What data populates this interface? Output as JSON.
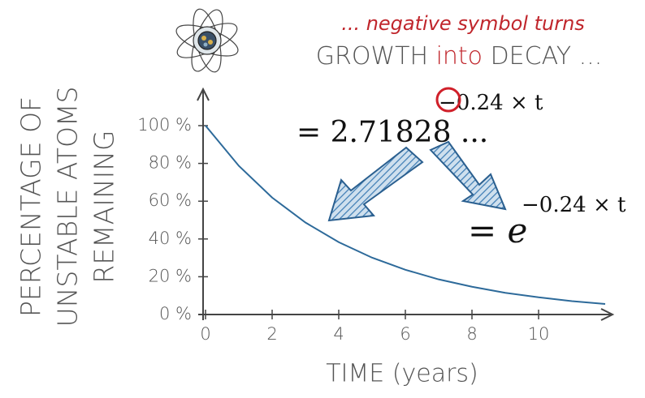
{
  "chart_data": {
    "type": "line",
    "annotations": {
      "top_line": "... negative symbol turns",
      "growth": "GROWTH",
      "into": "into",
      "decay": "DECAY ...",
      "exponent": "−0.24 × t",
      "euler": "= 2.71828 ...",
      "equals_e": "= e",
      "e_exponent": "−0.24 × t"
    },
    "y_label": [
      "PERCENTAGE OF",
      "UNSTABLE ATOMS",
      "REMAINING"
    ],
    "x_label": "TIME (years)",
    "x": [
      0,
      1,
      2,
      3,
      4,
      5,
      6,
      7,
      8,
      9,
      10,
      11,
      12
    ],
    "series": [
      {
        "color": "#2d6a9a",
        "values": [
          100,
          78.7,
          61.9,
          48.7,
          38.3,
          30.1,
          23.7,
          18.6,
          14.7,
          11.5,
          9.1,
          7.1,
          5.6
        ]
      }
    ],
    "xlim": [
      0,
      12
    ],
    "xticks": [
      0,
      2,
      4,
      6,
      8,
      10
    ],
    "ylim": [
      0,
      100
    ],
    "yticks": [
      {
        "value": 0,
        "label": "0 %"
      },
      {
        "value": 20,
        "label": "20 %"
      },
      {
        "value": 40,
        "label": "40 %"
      },
      {
        "value": 60,
        "label": "60 %"
      },
      {
        "value": 80,
        "label": "80 %"
      },
      {
        "value": 100,
        "label": "100 %"
      }
    ]
  }
}
